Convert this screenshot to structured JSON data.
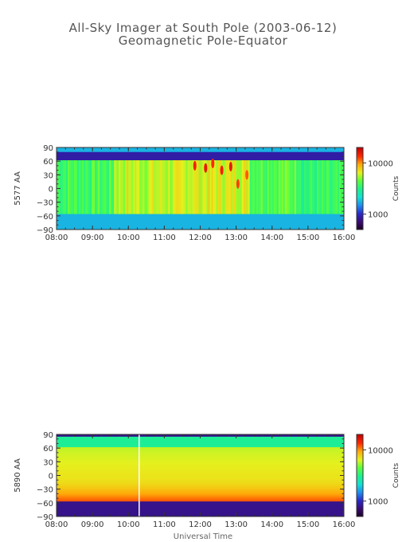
{
  "header": {
    "title": "All-Sky Imager at South Pole (2003-06-12)",
    "subtitle": "Geomagnetic Pole-Equator"
  },
  "colors": {
    "colormap": [
      "#18001e",
      "#3a0b73",
      "#2a28c8",
      "#1e8cf0",
      "#14e0d2",
      "#1ef08c",
      "#5aff3c",
      "#e6f01e",
      "#ffaa0a",
      "#ff2800",
      "#c80000"
    ]
  },
  "chart_data": [
    {
      "type": "heatmap",
      "ylabel": "5577 AA",
      "x_ticks": [
        "08:00",
        "09:00",
        "10:00",
        "11:00",
        "12:00",
        "13:00",
        "14:00",
        "15:00",
        "16:00"
      ],
      "x_range_hours": [
        8,
        16
      ],
      "y_ticks": [
        90,
        60,
        30,
        0,
        -30,
        -60,
        -90
      ],
      "ylim": [
        -90,
        90
      ],
      "colorbar": {
        "label": "Counts",
        "ticks": [
          10000,
          1000
        ],
        "tick_labels": [
          "10000",
          "1000"
        ],
        "range": [
          500,
          20000
        ],
        "scale": "log"
      },
      "observed_lat_range": [
        -56,
        62
      ],
      "background_counts": 1800,
      "segments": [
        {
          "start": 8.0,
          "end": 9.6,
          "counts": 4000
        },
        {
          "start": 9.6,
          "end": 11.6,
          "counts": 6000
        },
        {
          "start": 11.6,
          "end": 13.4,
          "counts": 6500
        },
        {
          "start": 13.4,
          "end": 14.8,
          "counts": 4500
        },
        {
          "start": 14.8,
          "end": 16.0,
          "counts": 3500
        }
      ],
      "bright_spots": [
        {
          "time": 11.85,
          "lat": 50,
          "counts": 15000
        },
        {
          "time": 12.15,
          "lat": 45,
          "counts": 16000
        },
        {
          "time": 12.35,
          "lat": 55,
          "counts": 14000
        },
        {
          "time": 12.6,
          "lat": 40,
          "counts": 15000
        },
        {
          "time": 12.85,
          "lat": 48,
          "counts": 16000
        },
        {
          "time": 13.05,
          "lat": 10,
          "counts": 13000
        },
        {
          "time": 13.3,
          "lat": 30,
          "counts": 12000
        }
      ]
    },
    {
      "type": "heatmap",
      "ylabel": "5890 AA",
      "xlabel": "Universal Time",
      "x_ticks": [
        "08:00",
        "09:00",
        "10:00",
        "11:00",
        "12:00",
        "13:00",
        "14:00",
        "15:00",
        "16:00"
      ],
      "x_range_hours": [
        8,
        16
      ],
      "y_ticks": [
        90,
        60,
        30,
        0,
        -30,
        -60,
        -90
      ],
      "ylim": [
        -90,
        90
      ],
      "colorbar": {
        "label": "Counts",
        "ticks": [
          10000,
          1000
        ],
        "tick_labels": [
          "10000",
          "1000"
        ],
        "range": [
          500,
          20000
        ],
        "scale": "log"
      },
      "observed_lat_range": [
        -56,
        62
      ],
      "background_counts": 800,
      "upper_band_counts": 3000,
      "profile_counts": {
        "north": 6000,
        "center": 7000,
        "south": 12000
      },
      "data_gap_time": 10.3
    }
  ]
}
